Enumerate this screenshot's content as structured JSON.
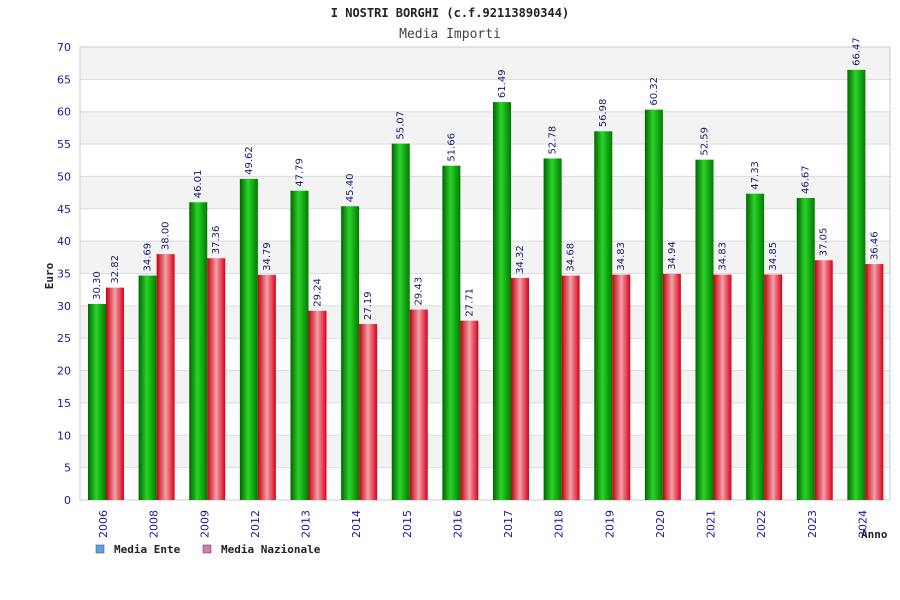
{
  "chart_data": {
    "type": "bar",
    "title": "I NOSTRI BORGHI (c.f.92113890344)",
    "subtitle": "Media Importi",
    "ylabel": "Euro",
    "xlabel": "Anno",
    "ylim": [
      0,
      70
    ],
    "ytick_step": 5,
    "grid": true,
    "legend_position": "bottom-left",
    "categories": [
      "2006",
      "2008",
      "2009",
      "2012",
      "2013",
      "2014",
      "2015",
      "2016",
      "2017",
      "2018",
      "2019",
      "2020",
      "2021",
      "2022",
      "2023",
      "2024"
    ],
    "series": [
      {
        "name": "Media Ente",
        "color": "#00b000",
        "legend_color": "#5aa0e6",
        "values": [
          30.3,
          34.69,
          46.01,
          49.62,
          47.79,
          45.4,
          55.07,
          51.66,
          61.49,
          52.78,
          56.98,
          60.32,
          52.59,
          47.33,
          46.67,
          66.47
        ],
        "labels": [
          "30.30",
          "34.69",
          "46.01",
          "49.62",
          "47.79",
          "45.40",
          "55.07",
          "51.66",
          "61.49",
          "52.78",
          "56.98",
          "60.32",
          "52.59",
          "47.33",
          "46.67",
          "66.47"
        ]
      },
      {
        "name": "Media Nazionale",
        "color": "#e8101e",
        "legend_color": "#d77bb0",
        "values": [
          32.82,
          38.0,
          37.36,
          34.79,
          29.24,
          27.19,
          29.43,
          27.71,
          34.32,
          34.68,
          34.83,
          34.94,
          34.83,
          34.85,
          37.05,
          36.46
        ],
        "labels": [
          "32.82",
          "38.00",
          "37.36",
          "34.79",
          "29.24",
          "27.19",
          "29.43",
          "27.71",
          "34.32",
          "34.68",
          "34.83",
          "34.94",
          "34.83",
          "34.85",
          "37.05",
          "36.46"
        ]
      }
    ]
  }
}
